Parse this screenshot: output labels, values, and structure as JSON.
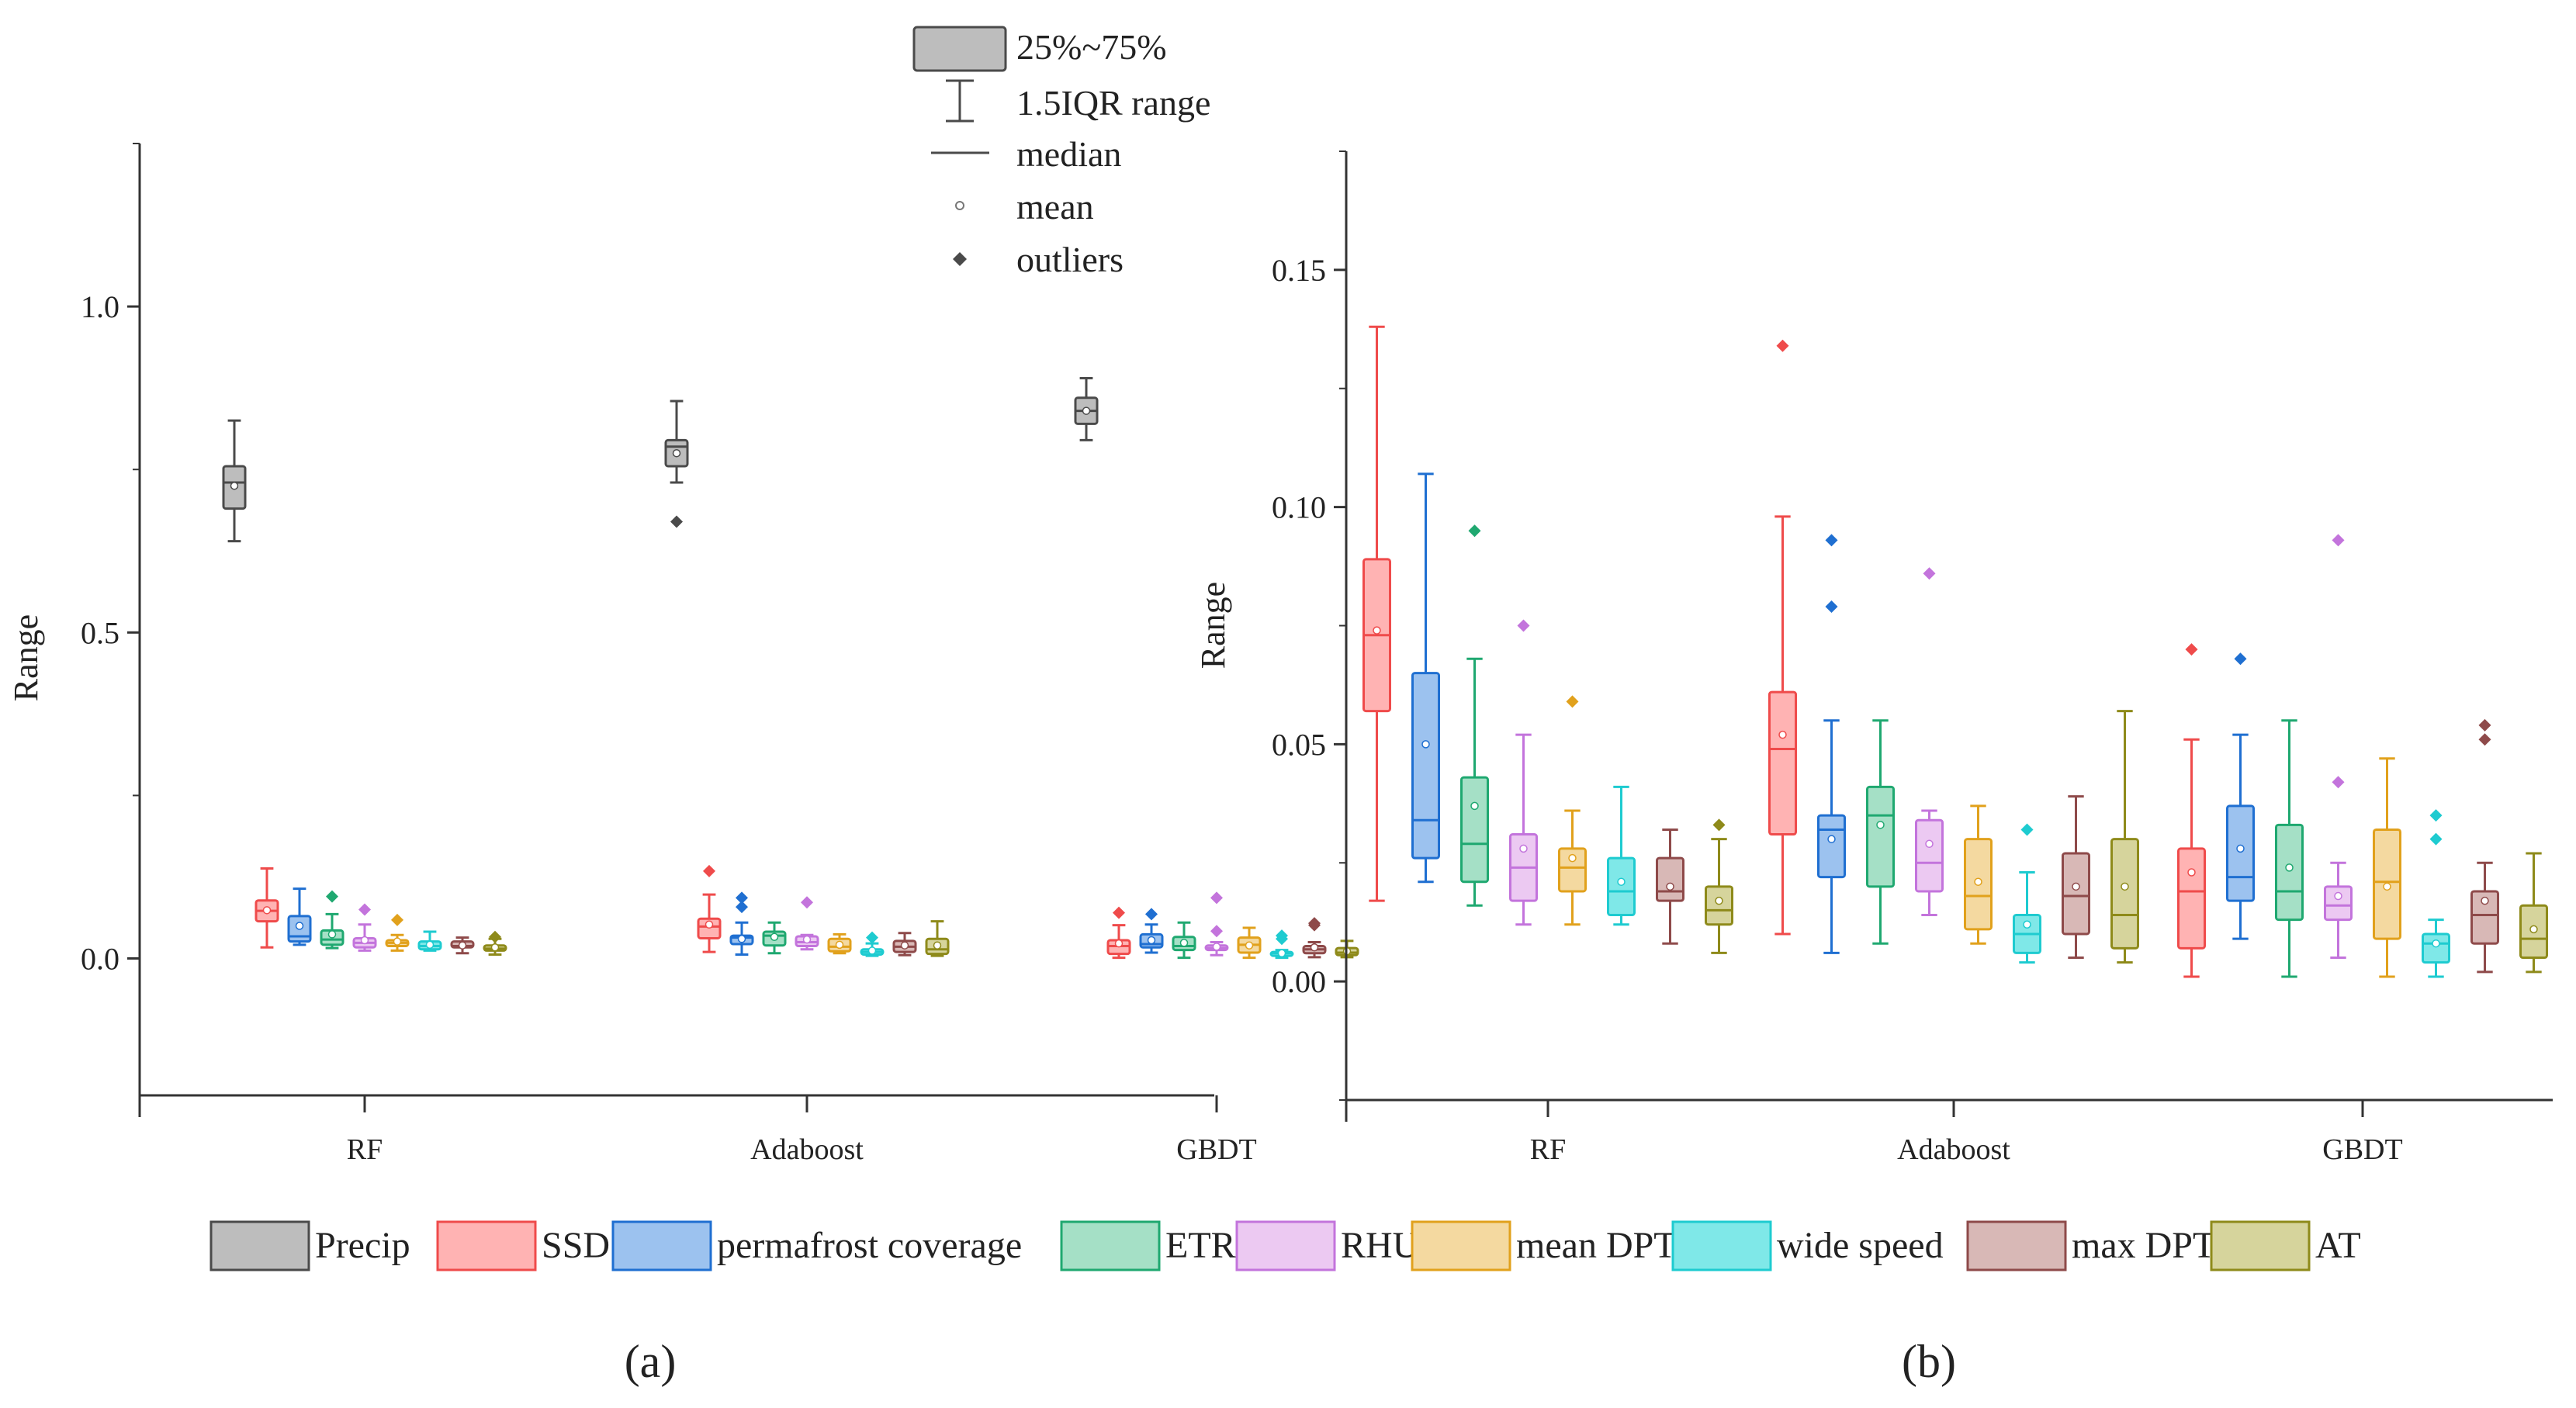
{
  "figure": {
    "panel_labels": [
      "(a)",
      "(b)"
    ],
    "legend": {
      "series": [
        {
          "name": "Precip",
          "fill": "#bdbdbd",
          "stroke": "#4a4a4a"
        },
        {
          "name": "SSD",
          "fill": "#ffb3b3",
          "stroke": "#ef4b4b"
        },
        {
          "name": "permafrost coverage",
          "fill": "#9cc2ef",
          "stroke": "#1f6fd1"
        },
        {
          "name": "ETR",
          "fill": "#a5e0c6",
          "stroke": "#1fa870"
        },
        {
          "name": "RHU",
          "fill": "#ecc9f2",
          "stroke": "#c374dc"
        },
        {
          "name": "mean DPT",
          "fill": "#f4d9a0",
          "stroke": "#e1a11c"
        },
        {
          "name": "wide speed",
          "fill": "#7fe8e8",
          "stroke": "#1ecbd0"
        },
        {
          "name": "max DPT",
          "fill": "#d8b8b6",
          "stroke": "#8e4a4a"
        },
        {
          "name": "AT",
          "fill": "#d6d49c",
          "stroke": "#8e8a1a"
        }
      ]
    },
    "box_key": {
      "box": "25%~75%",
      "whisker": "1.5IQR range",
      "median": "median",
      "mean": "mean",
      "outliers": "outliers"
    }
  },
  "chart_data": [
    {
      "type": "box",
      "panel": "(a)",
      "ylabel": "Range",
      "xlabel": "",
      "ylim": [
        -0.21,
        1.25
      ],
      "yticks": [
        0.0,
        0.5,
        1.0
      ],
      "ytick_labels": [
        "0.0",
        "0.5",
        "1.0"
      ],
      "categories": [
        "RF",
        "Adaboost",
        "GBDT"
      ],
      "series_names": [
        "Precip",
        "SSD",
        "permafrost coverage",
        "ETR",
        "RHU",
        "mean DPT",
        "wide speed",
        "max DPT",
        "AT"
      ],
      "boxes": {
        "RF": [
          {
            "min": 0.64,
            "q1": 0.69,
            "median": 0.73,
            "q3": 0.755,
            "max": 0.825,
            "mean": 0.725,
            "outliers": []
          },
          {
            "min": 0.017,
            "q1": 0.057,
            "median": 0.073,
            "q3": 0.089,
            "max": 0.138,
            "mean": 0.074,
            "outliers": []
          },
          {
            "min": 0.021,
            "q1": 0.026,
            "median": 0.034,
            "q3": 0.065,
            "max": 0.107,
            "mean": 0.05,
            "outliers": []
          },
          {
            "min": 0.016,
            "q1": 0.021,
            "median": 0.029,
            "q3": 0.043,
            "max": 0.068,
            "mean": 0.037,
            "outliers": [
              0.095
            ]
          },
          {
            "min": 0.012,
            "q1": 0.017,
            "median": 0.024,
            "q3": 0.031,
            "max": 0.052,
            "mean": 0.028,
            "outliers": [
              0.075
            ]
          },
          {
            "min": 0.012,
            "q1": 0.019,
            "median": 0.024,
            "q3": 0.028,
            "max": 0.036,
            "mean": 0.026,
            "outliers": [
              0.059
            ]
          },
          {
            "min": 0.012,
            "q1": 0.014,
            "median": 0.019,
            "q3": 0.026,
            "max": 0.041,
            "mean": 0.021,
            "outliers": []
          },
          {
            "min": 0.008,
            "q1": 0.017,
            "median": 0.019,
            "q3": 0.026,
            "max": 0.032,
            "mean": 0.02,
            "outliers": []
          },
          {
            "min": 0.006,
            "q1": 0.012,
            "median": 0.015,
            "q3": 0.02,
            "max": 0.03,
            "mean": 0.017,
            "outliers": [
              0.033
            ]
          }
        ],
        "Adaboost": [
          {
            "min": 0.73,
            "q1": 0.755,
            "median": 0.785,
            "q3": 0.795,
            "max": 0.855,
            "mean": 0.775,
            "outliers": [
              0.67
            ]
          },
          {
            "min": 0.01,
            "q1": 0.031,
            "median": 0.049,
            "q3": 0.061,
            "max": 0.098,
            "mean": 0.052,
            "outliers": [
              0.134
            ]
          },
          {
            "min": 0.006,
            "q1": 0.022,
            "median": 0.032,
            "q3": 0.035,
            "max": 0.055,
            "mean": 0.03,
            "outliers": [
              0.079,
              0.093
            ]
          },
          {
            "min": 0.008,
            "q1": 0.02,
            "median": 0.035,
            "q3": 0.041,
            "max": 0.055,
            "mean": 0.033,
            "outliers": []
          },
          {
            "min": 0.014,
            "q1": 0.019,
            "median": 0.025,
            "q3": 0.034,
            "max": 0.036,
            "mean": 0.029,
            "outliers": [
              0.086
            ]
          },
          {
            "min": 0.008,
            "q1": 0.011,
            "median": 0.018,
            "q3": 0.03,
            "max": 0.037,
            "mean": 0.021,
            "outliers": []
          },
          {
            "min": 0.004,
            "q1": 0.006,
            "median": 0.01,
            "q3": 0.014,
            "max": 0.023,
            "mean": 0.012,
            "outliers": [
              0.032
            ]
          },
          {
            "min": 0.005,
            "q1": 0.01,
            "median": 0.018,
            "q3": 0.027,
            "max": 0.039,
            "mean": 0.02,
            "outliers": []
          },
          {
            "min": 0.004,
            "q1": 0.007,
            "median": 0.014,
            "q3": 0.03,
            "max": 0.057,
            "mean": 0.02,
            "outliers": []
          }
        ],
        "GBDT": [
          {
            "min": 0.795,
            "q1": 0.82,
            "median": 0.84,
            "q3": 0.86,
            "max": 0.89,
            "mean": 0.84,
            "outliers": []
          },
          {
            "min": 0.001,
            "q1": 0.007,
            "median": 0.019,
            "q3": 0.028,
            "max": 0.051,
            "mean": 0.023,
            "outliers": [
              0.07
            ]
          },
          {
            "min": 0.009,
            "q1": 0.017,
            "median": 0.022,
            "q3": 0.037,
            "max": 0.052,
            "mean": 0.028,
            "outliers": [
              0.068
            ]
          },
          {
            "min": 0.001,
            "q1": 0.013,
            "median": 0.019,
            "q3": 0.033,
            "max": 0.055,
            "mean": 0.024,
            "outliers": []
          },
          {
            "min": 0.005,
            "q1": 0.013,
            "median": 0.016,
            "q3": 0.02,
            "max": 0.025,
            "mean": 0.018,
            "outliers": [
              0.042,
              0.093
            ]
          },
          {
            "min": 0.001,
            "q1": 0.009,
            "median": 0.021,
            "q3": 0.032,
            "max": 0.047,
            "mean": 0.02,
            "outliers": []
          },
          {
            "min": 0.001,
            "q1": 0.004,
            "median": 0.008,
            "q3": 0.01,
            "max": 0.013,
            "mean": 0.008,
            "outliers": [
              0.03,
              0.035
            ]
          },
          {
            "min": 0.002,
            "q1": 0.008,
            "median": 0.014,
            "q3": 0.019,
            "max": 0.025,
            "mean": 0.017,
            "outliers": [
              0.051,
              0.054
            ]
          },
          {
            "min": 0.002,
            "q1": 0.005,
            "median": 0.009,
            "q3": 0.016,
            "max": 0.027,
            "mean": 0.011,
            "outliers": []
          }
        ]
      }
    },
    {
      "type": "box",
      "panel": "(b)",
      "ylabel": "Range",
      "xlabel": "",
      "ylim": [
        -0.025,
        0.175
      ],
      "yticks": [
        0.0,
        0.05,
        0.1,
        0.15
      ],
      "ytick_labels": [
        "0.00",
        "0.05",
        "0.10",
        "0.15"
      ],
      "categories": [
        "RF",
        "Adaboost",
        "GBDT"
      ],
      "series_names": [
        "SSD",
        "permafrost coverage",
        "ETR",
        "RHU",
        "mean DPT",
        "wide speed",
        "max DPT",
        "AT"
      ],
      "boxes": {
        "RF": [
          {
            "min": 0.017,
            "q1": 0.057,
            "median": 0.073,
            "q3": 0.089,
            "max": 0.138,
            "mean": 0.074,
            "outliers": []
          },
          {
            "min": 0.021,
            "q1": 0.026,
            "median": 0.034,
            "q3": 0.065,
            "max": 0.107,
            "mean": 0.05,
            "outliers": []
          },
          {
            "min": 0.016,
            "q1": 0.021,
            "median": 0.029,
            "q3": 0.043,
            "max": 0.068,
            "mean": 0.037,
            "outliers": [
              0.095
            ]
          },
          {
            "min": 0.012,
            "q1": 0.017,
            "median": 0.024,
            "q3": 0.031,
            "max": 0.052,
            "mean": 0.028,
            "outliers": [
              0.075
            ]
          },
          {
            "min": 0.012,
            "q1": 0.019,
            "median": 0.024,
            "q3": 0.028,
            "max": 0.036,
            "mean": 0.026,
            "outliers": [
              0.059
            ]
          },
          {
            "min": 0.012,
            "q1": 0.014,
            "median": 0.019,
            "q3": 0.026,
            "max": 0.041,
            "mean": 0.021,
            "outliers": []
          },
          {
            "min": 0.008,
            "q1": 0.017,
            "median": 0.019,
            "q3": 0.026,
            "max": 0.032,
            "mean": 0.02,
            "outliers": []
          },
          {
            "min": 0.006,
            "q1": 0.012,
            "median": 0.015,
            "q3": 0.02,
            "max": 0.03,
            "mean": 0.017,
            "outliers": [
              0.033
            ]
          }
        ],
        "Adaboost": [
          {
            "min": 0.01,
            "q1": 0.031,
            "median": 0.049,
            "q3": 0.061,
            "max": 0.098,
            "mean": 0.052,
            "outliers": [
              0.134
            ]
          },
          {
            "min": 0.006,
            "q1": 0.022,
            "median": 0.032,
            "q3": 0.035,
            "max": 0.055,
            "mean": 0.03,
            "outliers": [
              0.079,
              0.093
            ]
          },
          {
            "min": 0.008,
            "q1": 0.02,
            "median": 0.035,
            "q3": 0.041,
            "max": 0.055,
            "mean": 0.033,
            "outliers": []
          },
          {
            "min": 0.014,
            "q1": 0.019,
            "median": 0.025,
            "q3": 0.034,
            "max": 0.036,
            "mean": 0.029,
            "outliers": [
              0.086
            ]
          },
          {
            "min": 0.008,
            "q1": 0.011,
            "median": 0.018,
            "q3": 0.03,
            "max": 0.037,
            "mean": 0.021,
            "outliers": []
          },
          {
            "min": 0.004,
            "q1": 0.006,
            "median": 0.01,
            "q3": 0.014,
            "max": 0.023,
            "mean": 0.012,
            "outliers": [
              0.032
            ]
          },
          {
            "min": 0.005,
            "q1": 0.01,
            "median": 0.018,
            "q3": 0.027,
            "max": 0.039,
            "mean": 0.02,
            "outliers": []
          },
          {
            "min": 0.004,
            "q1": 0.007,
            "median": 0.014,
            "q3": 0.03,
            "max": 0.057,
            "mean": 0.02,
            "outliers": []
          }
        ],
        "GBDT": [
          {
            "min": 0.001,
            "q1": 0.007,
            "median": 0.019,
            "q3": 0.028,
            "max": 0.051,
            "mean": 0.023,
            "outliers": [
              0.07
            ]
          },
          {
            "min": 0.009,
            "q1": 0.017,
            "median": 0.022,
            "q3": 0.037,
            "max": 0.052,
            "mean": 0.028,
            "outliers": [
              0.068
            ]
          },
          {
            "min": 0.001,
            "q1": 0.013,
            "median": 0.019,
            "q3": 0.033,
            "max": 0.055,
            "mean": 0.024,
            "outliers": []
          },
          {
            "min": 0.005,
            "q1": 0.013,
            "median": 0.016,
            "q3": 0.02,
            "max": 0.025,
            "mean": 0.018,
            "outliers": [
              0.042,
              0.093
            ]
          },
          {
            "min": 0.001,
            "q1": 0.009,
            "median": 0.021,
            "q3": 0.032,
            "max": 0.047,
            "mean": 0.02,
            "outliers": []
          },
          {
            "min": 0.001,
            "q1": 0.004,
            "median": 0.008,
            "q3": 0.01,
            "max": 0.013,
            "mean": 0.008,
            "outliers": [
              0.03,
              0.035
            ]
          },
          {
            "min": 0.002,
            "q1": 0.008,
            "median": 0.014,
            "q3": 0.019,
            "max": 0.025,
            "mean": 0.017,
            "outliers": [
              0.051,
              0.054
            ]
          },
          {
            "min": 0.002,
            "q1": 0.005,
            "median": 0.009,
            "q3": 0.016,
            "max": 0.027,
            "mean": 0.011,
            "outliers": []
          }
        ]
      }
    }
  ]
}
